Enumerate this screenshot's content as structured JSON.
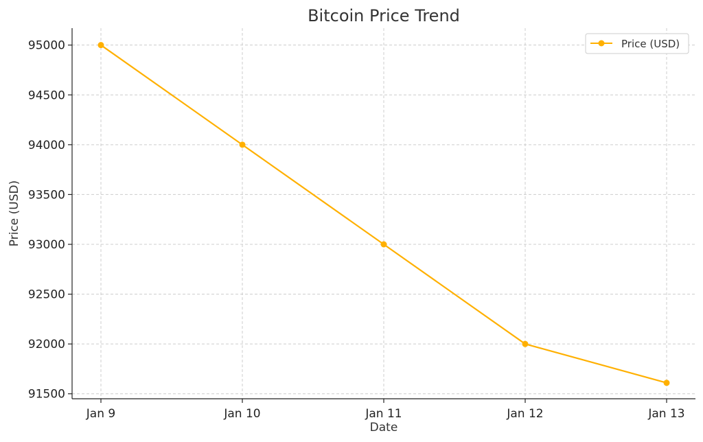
{
  "chart_data": {
    "type": "line",
    "title": "Bitcoin Price Trend",
    "xlabel": "Date",
    "ylabel": "Price (USD)",
    "categories": [
      "Jan 9",
      "Jan 10",
      "Jan 11",
      "Jan 12",
      "Jan 13"
    ],
    "series": [
      {
        "name": "Price (USD)",
        "values": [
          95000,
          94000,
          93000,
          92000,
          91610
        ],
        "color": "#FFB000"
      }
    ],
    "yticks": [
      "91500",
      "92000",
      "92500",
      "93000",
      "93500",
      "94000",
      "94500",
      "95000"
    ],
    "ylim": [
      91450,
      95170
    ],
    "grid": true,
    "legend": "top-right",
    "marker": "circle"
  }
}
